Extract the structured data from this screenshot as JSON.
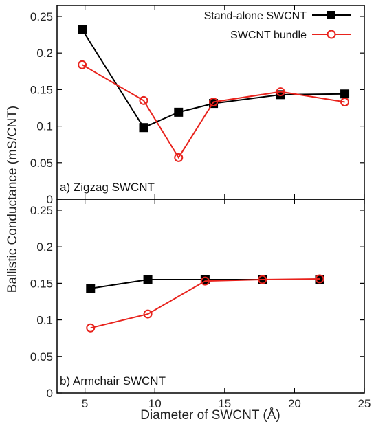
{
  "chart_data": {
    "type": "line",
    "xlabel": "Diameter of SWCNT (Å)",
    "ylabel": "Ballistic Conductance (mS/CNT)",
    "xlim": [
      3,
      25
    ],
    "ylim": [
      0,
      0.265
    ],
    "xticks": [
      5,
      10,
      15,
      20,
      25
    ],
    "yticks": [
      0,
      0.05,
      0.1,
      0.15,
      0.2,
      0.25
    ],
    "ytick_labels": [
      "0",
      "0.05",
      "0.1",
      "0.15",
      "0.2",
      "0.25"
    ],
    "xtick_labels": [
      "5",
      "10",
      "15",
      "20",
      "25"
    ],
    "legend": {
      "placement": "top-right"
    },
    "legend_labels": [
      "Stand-alone SWCNT",
      "SWCNT bundle"
    ],
    "series_colors": {
      "stand_alone": "#000000",
      "bundle": "#e8231d"
    },
    "panels": [
      {
        "label": "a) Zigzag SWCNT",
        "series": [
          {
            "name": "Stand-alone SWCNT",
            "marker": "filled-square",
            "x": [
              4.8,
              9.2,
              11.7,
              14.2,
              19,
              23.6
            ],
            "y": [
              0.232,
              0.098,
              0.119,
              0.131,
              0.143,
              0.144
            ]
          },
          {
            "name": "SWCNT bundle",
            "marker": "open-circle",
            "x": [
              4.8,
              9.2,
              11.7,
              14.2,
              19,
              23.6
            ],
            "y": [
              0.184,
              0.135,
              0.057,
              0.133,
              0.147,
              0.133
            ]
          }
        ]
      },
      {
        "label": "b) Armchair SWCNT",
        "series": [
          {
            "name": "Stand-alone SWCNT",
            "marker": "filled-square",
            "x": [
              5.4,
              9.5,
              13.6,
              17.7,
              21.8
            ],
            "y": [
              0.143,
              0.155,
              0.155,
              0.155,
              0.155
            ]
          },
          {
            "name": "SWCNT bundle",
            "marker": "open-circle",
            "x": [
              5.4,
              9.5,
              13.6,
              17.7,
              21.8
            ],
            "y": [
              0.089,
              0.108,
              0.153,
              0.155,
              0.156
            ]
          }
        ]
      }
    ]
  }
}
